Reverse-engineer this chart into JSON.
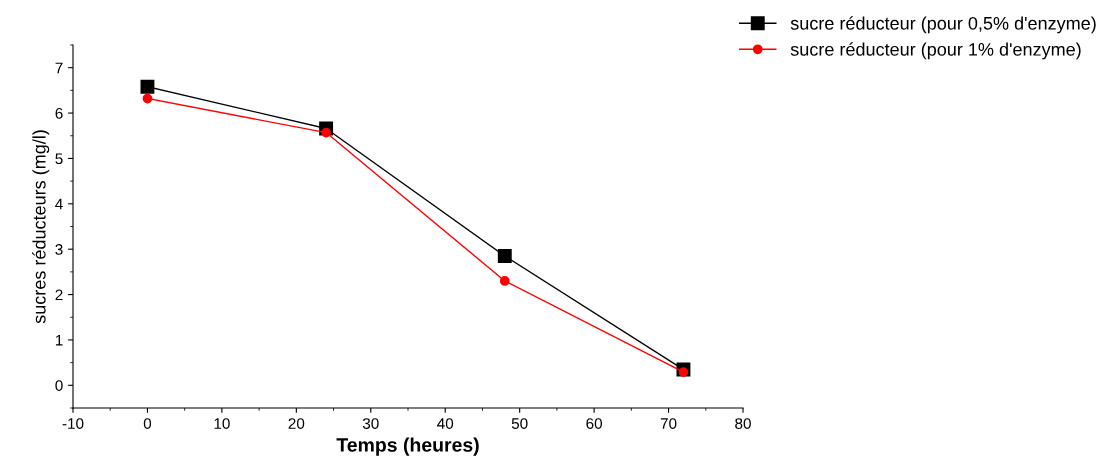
{
  "chart_data": {
    "type": "line",
    "x": [
      0,
      24,
      48,
      72
    ],
    "series": [
      {
        "name": "sucre réducteur (pour 0,5% d'enzyme)",
        "color": "#000000",
        "marker": "square",
        "values": [
          6.58,
          5.66,
          2.85,
          0.35
        ]
      },
      {
        "name": "sucre réducteur (pour 1% d'enzyme)",
        "color": "#ff0000",
        "marker": "circle",
        "values": [
          6.32,
          5.57,
          2.3,
          0.29
        ]
      }
    ],
    "xlabel": "Temps (heures)",
    "ylabel": "sucres réducteurs (mg/l)",
    "xlim": [
      -10,
      80
    ],
    "xticks": [
      -10,
      0,
      10,
      20,
      30,
      40,
      50,
      60,
      70,
      80
    ],
    "ylim": [
      -0.5,
      7.5
    ],
    "yticks": [
      0,
      1,
      2,
      3,
      4,
      5,
      6,
      7
    ],
    "grid": false,
    "legend": "top right",
    "line_style": "solid"
  }
}
